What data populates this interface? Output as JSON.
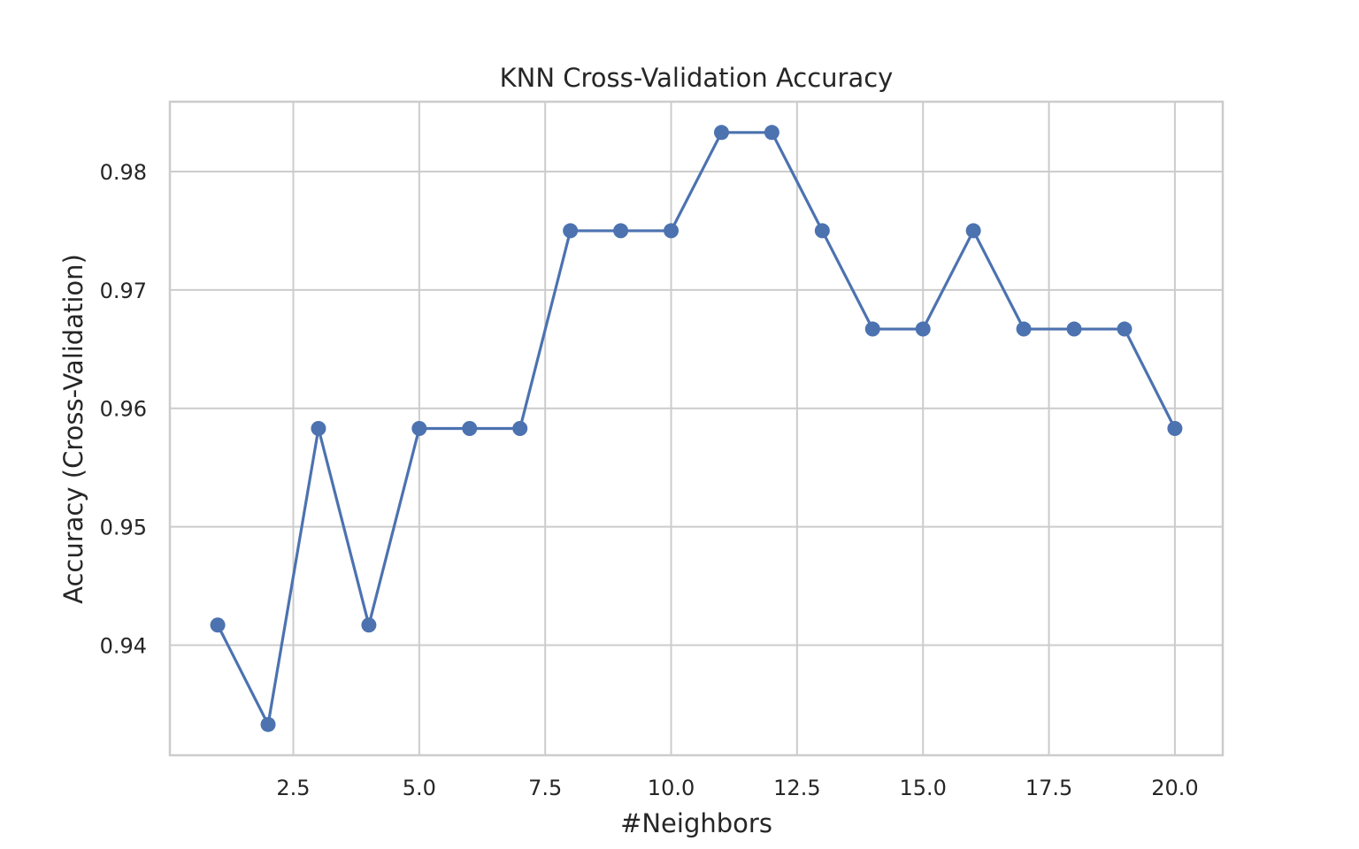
{
  "chart_data": {
    "type": "line",
    "title": "KNN Cross-Validation Accuracy",
    "xlabel": "#Neighbors",
    "ylabel": "Accuracy (Cross-Validation)",
    "xlim": [
      0.05,
      20.95
    ],
    "ylim": [
      0.9307,
      0.9859
    ],
    "xticks": [
      2.5,
      5.0,
      7.5,
      10.0,
      12.5,
      15.0,
      17.5,
      20.0
    ],
    "xtick_labels": [
      "2.5",
      "5.0",
      "7.5",
      "10.0",
      "12.5",
      "15.0",
      "17.5",
      "20.0"
    ],
    "yticks": [
      0.94,
      0.95,
      0.96,
      0.97,
      0.98
    ],
    "ytick_labels": [
      "0.94",
      "0.95",
      "0.96",
      "0.97",
      "0.98"
    ],
    "grid": true,
    "series": [
      {
        "color": "#4c72b0",
        "marker": "circle",
        "x": [
          1,
          2,
          3,
          4,
          5,
          6,
          7,
          8,
          9,
          10,
          11,
          12,
          13,
          14,
          15,
          16,
          17,
          18,
          19,
          20
        ],
        "y": [
          0.9417,
          0.9333,
          0.9583,
          0.9417,
          0.9583,
          0.9583,
          0.9583,
          0.975,
          0.975,
          0.975,
          0.9833,
          0.9833,
          0.975,
          0.9667,
          0.9667,
          0.975,
          0.9667,
          0.9667,
          0.9667,
          0.9583
        ]
      }
    ]
  }
}
